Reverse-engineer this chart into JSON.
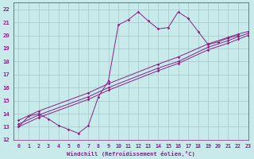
{
  "xlabel": "Windchill (Refroidissement éolien,°C)",
  "bg_color": "#c8eaea",
  "grid_color": "#a0c8c8",
  "line_color": "#882288",
  "xlim": [
    -0.5,
    23
  ],
  "ylim": [
    12,
    22.5
  ],
  "xticks": [
    0,
    1,
    2,
    3,
    4,
    5,
    6,
    7,
    8,
    9,
    10,
    11,
    12,
    13,
    14,
    15,
    16,
    17,
    18,
    19,
    20,
    21,
    22,
    23
  ],
  "yticks": [
    12,
    13,
    14,
    15,
    16,
    17,
    18,
    19,
    20,
    21,
    22
  ],
  "series": [
    {
      "x": [
        0,
        1,
        2,
        3,
        4,
        5,
        6,
        7,
        8,
        9,
        10,
        11,
        12,
        13,
        14,
        15,
        16,
        17,
        18,
        19,
        20,
        21,
        22
      ],
      "y": [
        13.0,
        13.8,
        14.0,
        13.6,
        13.1,
        12.8,
        12.5,
        13.1,
        15.3,
        16.5,
        20.8,
        21.2,
        21.8,
        21.1,
        20.5,
        20.6,
        21.8,
        21.3,
        20.3,
        19.3,
        19.5,
        19.8,
        20.0
      ]
    },
    {
      "x": [
        0,
        2,
        7,
        9,
        14,
        16,
        19,
        21,
        22,
        23
      ],
      "y": [
        13.0,
        13.7,
        15.1,
        15.8,
        17.3,
        17.85,
        18.9,
        19.4,
        19.7,
        20.0
      ]
    },
    {
      "x": [
        0,
        2,
        7,
        9,
        14,
        16,
        19,
        21,
        22,
        23
      ],
      "y": [
        13.2,
        13.9,
        15.3,
        16.0,
        17.5,
        18.0,
        19.1,
        19.6,
        19.9,
        20.15
      ]
    },
    {
      "x": [
        0,
        2,
        7,
        9,
        14,
        16,
        19,
        21,
        22,
        23
      ],
      "y": [
        13.5,
        14.2,
        15.6,
        16.3,
        17.8,
        18.35,
        19.35,
        19.85,
        20.1,
        20.3
      ]
    }
  ]
}
